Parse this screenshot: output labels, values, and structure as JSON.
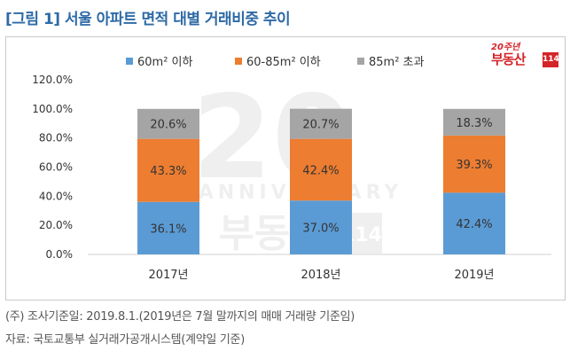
{
  "title": "[그림 1] 서울 아파트 면적 대별 거래비중 추이",
  "brand": {
    "logo_top": "20주년",
    "logo_main": "부동산",
    "logo_num": "114",
    "watermark_anniversary": "ANNIVERSARY",
    "watermark_main": "부동산",
    "watermark_num": "114"
  },
  "notes": {
    "line1": "(주) 조사기준일: 2019.8.1.(2019년은 7월 말까지의 매매 거래량 기준임)",
    "line2": "자료: 국토교통부 실거래가공개시스템(계약일 기준)"
  },
  "chart_data": {
    "type": "bar",
    "stacked": true,
    "categories": [
      "2017년",
      "2018년",
      "2019년"
    ],
    "series": [
      {
        "name": "60m² 이하",
        "color": "#5b9bd5",
        "values": [
          36.1,
          37.0,
          42.4
        ],
        "labels": [
          "36.1%",
          "37.0%",
          "42.4%"
        ]
      },
      {
        "name": "60-85m² 이하",
        "color": "#ed7d31",
        "values": [
          43.3,
          42.4,
          39.3
        ],
        "labels": [
          "43.3%",
          "42.4%",
          "39.3%"
        ]
      },
      {
        "name": "85m² 초과",
        "color": "#a5a5a5",
        "values": [
          20.6,
          20.7,
          18.3
        ],
        "labels": [
          "20.6%",
          "20.7%",
          "18.3%"
        ]
      }
    ],
    "ylim": [
      0,
      120
    ],
    "yticks": [
      "0.0%",
      "20.0%",
      "40.0%",
      "60.0%",
      "80.0%",
      "100.0%",
      "120.0%"
    ],
    "ytick_values": [
      0,
      20,
      40,
      60,
      80,
      100,
      120
    ],
    "grid": false,
    "legend": "top"
  }
}
